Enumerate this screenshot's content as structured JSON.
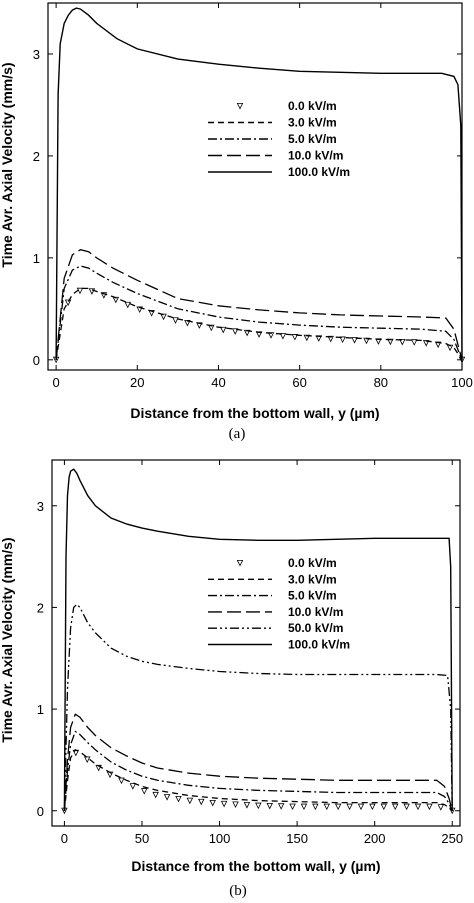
{
  "chart_data": [
    {
      "type": "line",
      "caption": "(a)",
      "xlabel": "Distance from the bottom wall, y (µm)",
      "ylabel": "Time Avr. Axial Velocity (mm/s)",
      "xlim": [
        -2,
        100
      ],
      "ylim": [
        -0.1,
        3.5
      ],
      "xticks": [
        0,
        20,
        40,
        60,
        80,
        100
      ],
      "yticks": [
        0,
        1,
        2,
        3
      ],
      "legend_position": "center-right",
      "series": [
        {
          "name": "0.0 kV/m",
          "style": "triangles",
          "x": [
            0,
            2,
            4,
            6,
            8,
            10,
            14,
            20,
            30,
            40,
            50,
            60,
            70,
            80,
            90,
            96,
            98,
            99,
            100
          ],
          "y": [
            0,
            0.5,
            0.63,
            0.68,
            0.68,
            0.66,
            0.6,
            0.5,
            0.38,
            0.3,
            0.25,
            0.22,
            0.2,
            0.18,
            0.17,
            0.14,
            0.1,
            0.05,
            0
          ]
        },
        {
          "name": "3.0 kV/m",
          "style": "dash",
          "x": [
            0,
            2,
            4,
            6,
            8,
            10,
            14,
            20,
            30,
            40,
            50,
            60,
            70,
            80,
            90,
            96,
            98,
            99,
            100
          ],
          "y": [
            0,
            0.5,
            0.64,
            0.7,
            0.7,
            0.67,
            0.62,
            0.52,
            0.4,
            0.32,
            0.27,
            0.24,
            0.22,
            0.2,
            0.19,
            0.16,
            0.12,
            0.06,
            0
          ]
        },
        {
          "name": "5.0 kV/m",
          "style": "dashdot",
          "x": [
            0,
            2,
            4,
            6,
            8,
            10,
            14,
            20,
            30,
            40,
            50,
            60,
            70,
            80,
            90,
            96,
            98,
            99,
            100
          ],
          "y": [
            0,
            0.7,
            0.88,
            0.92,
            0.9,
            0.85,
            0.76,
            0.65,
            0.5,
            0.42,
            0.37,
            0.34,
            0.32,
            0.31,
            0.3,
            0.28,
            0.2,
            0.1,
            0
          ]
        },
        {
          "name": "10.0 kV/m",
          "style": "longdash",
          "x": [
            0,
            2,
            4,
            6,
            8,
            10,
            14,
            20,
            30,
            40,
            50,
            60,
            70,
            80,
            90,
            96,
            98,
            99,
            100
          ],
          "y": [
            0,
            0.8,
            1.03,
            1.08,
            1.06,
            1.0,
            0.9,
            0.78,
            0.6,
            0.53,
            0.49,
            0.46,
            0.44,
            0.43,
            0.42,
            0.41,
            0.3,
            0.15,
            0
          ]
        },
        {
          "name": "100.0 kV/m",
          "style": "solid",
          "x": [
            0,
            0.5,
            1,
            2,
            3,
            4,
            5,
            6,
            8,
            10,
            15,
            20,
            30,
            40,
            50,
            60,
            70,
            80,
            90,
            95,
            98,
            99,
            99.7,
            100
          ],
          "y": [
            0,
            2.6,
            3.1,
            3.3,
            3.38,
            3.43,
            3.45,
            3.44,
            3.38,
            3.3,
            3.15,
            3.05,
            2.95,
            2.9,
            2.86,
            2.83,
            2.82,
            2.81,
            2.81,
            2.81,
            2.78,
            2.7,
            2.3,
            0
          ]
        }
      ]
    },
    {
      "type": "line",
      "caption": "(b)",
      "xlabel": "Distance from the bottom wall, y (µm)",
      "ylabel": "Time Avr. Axial Velocity (mm/s)",
      "xlim": [
        -8,
        255
      ],
      "ylim": [
        -0.15,
        3.45
      ],
      "xticks": [
        0,
        50,
        100,
        150,
        200,
        250
      ],
      "yticks": [
        0,
        1,
        2,
        3
      ],
      "legend_position": "center-right",
      "series": [
        {
          "name": "0.0 kV/m",
          "style": "triangles",
          "x": [
            0,
            2,
            4,
            7,
            10,
            15,
            20,
            30,
            40,
            50,
            60,
            80,
            100,
            125,
            150,
            175,
            200,
            225,
            240,
            245,
            248,
            250
          ],
          "y": [
            0,
            0.3,
            0.5,
            0.57,
            0.56,
            0.5,
            0.44,
            0.35,
            0.27,
            0.2,
            0.15,
            0.1,
            0.07,
            0.05,
            0.04,
            0.04,
            0.04,
            0.04,
            0.04,
            0.03,
            0.02,
            0
          ]
        },
        {
          "name": "3.0 kV/m",
          "style": "dash",
          "x": [
            0,
            2,
            4,
            7,
            10,
            15,
            20,
            30,
            40,
            50,
            60,
            80,
            100,
            125,
            150,
            175,
            200,
            225,
            240,
            245,
            248,
            250
          ],
          "y": [
            0,
            0.3,
            0.52,
            0.6,
            0.58,
            0.52,
            0.46,
            0.37,
            0.3,
            0.24,
            0.2,
            0.15,
            0.12,
            0.1,
            0.09,
            0.08,
            0.08,
            0.08,
            0.08,
            0.06,
            0.03,
            0
          ]
        },
        {
          "name": "5.0 kV/m",
          "style": "dashdot",
          "x": [
            0,
            2,
            4,
            7,
            10,
            15,
            20,
            30,
            40,
            50,
            60,
            80,
            100,
            125,
            150,
            175,
            200,
            225,
            240,
            245,
            248,
            250
          ],
          "y": [
            0,
            0.4,
            0.65,
            0.78,
            0.75,
            0.67,
            0.6,
            0.48,
            0.4,
            0.34,
            0.3,
            0.25,
            0.22,
            0.2,
            0.19,
            0.18,
            0.18,
            0.18,
            0.18,
            0.14,
            0.07,
            0
          ]
        },
        {
          "name": "10.0 kV/m",
          "style": "longdash",
          "x": [
            0,
            2,
            4,
            7,
            10,
            15,
            20,
            30,
            40,
            50,
            60,
            80,
            100,
            125,
            150,
            175,
            200,
            225,
            240,
            245,
            248,
            250
          ],
          "y": [
            0,
            0.5,
            0.82,
            0.95,
            0.92,
            0.82,
            0.74,
            0.62,
            0.54,
            0.47,
            0.42,
            0.37,
            0.34,
            0.32,
            0.31,
            0.3,
            0.3,
            0.3,
            0.3,
            0.24,
            0.12,
            0
          ]
        },
        {
          "name": "50.0 kV/m",
          "style": "dashdotdot",
          "x": [
            0,
            2,
            4,
            6,
            8,
            10,
            15,
            20,
            30,
            40,
            50,
            60,
            80,
            100,
            125,
            150,
            175,
            200,
            225,
            240,
            247,
            249,
            250
          ],
          "y": [
            0,
            1.2,
            1.8,
            2.0,
            2.03,
            2.0,
            1.85,
            1.75,
            1.6,
            1.52,
            1.47,
            1.44,
            1.4,
            1.37,
            1.35,
            1.34,
            1.34,
            1.34,
            1.34,
            1.34,
            1.33,
            1.0,
            0
          ]
        },
        {
          "name": "100.0 kV/m",
          "style": "solid",
          "x": [
            0,
            1,
            2,
            3,
            4,
            6,
            8,
            10,
            15,
            20,
            30,
            40,
            50,
            60,
            80,
            100,
            125,
            150,
            175,
            200,
            225,
            240,
            248,
            249,
            250
          ],
          "y": [
            0,
            2.5,
            3.1,
            3.28,
            3.34,
            3.36,
            3.32,
            3.25,
            3.1,
            3.0,
            2.88,
            2.82,
            2.78,
            2.75,
            2.7,
            2.67,
            2.66,
            2.66,
            2.67,
            2.68,
            2.68,
            2.68,
            2.68,
            2.4,
            0
          ]
        }
      ]
    }
  ]
}
